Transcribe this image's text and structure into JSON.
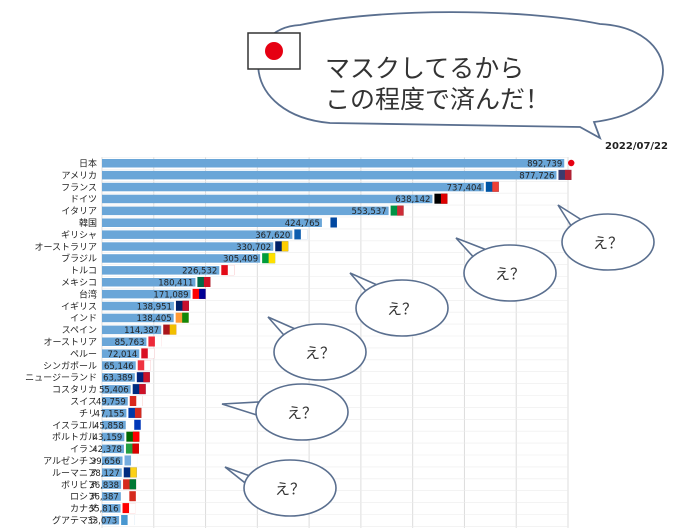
{
  "chart_data": {
    "type": "bar",
    "orientation": "horizontal",
    "date": "2022/07/22",
    "categories": [
      "日本",
      "アメリカ",
      "フランス",
      "ドイツ",
      "イタリア",
      "韓国",
      "ギリシャ",
      "オーストラリア",
      "ブラジル",
      "トルコ",
      "メキシコ",
      "台湾",
      "イギリス",
      "インド",
      "スペイン",
      "オーストリア",
      "ペルー",
      "シンガポール",
      "ニュージーランド",
      "コスタリカ",
      "スイス",
      "チリ",
      "イスラエル",
      "ポルトガル",
      "イラン",
      "アルゼンチン",
      "ルーマニア",
      "ボリビア",
      "ロシア",
      "カナダ",
      "グアテマラ"
    ],
    "values": [
      892739,
      877726,
      737404,
      638142,
      553537,
      424765,
      367620,
      330702,
      305409,
      226532,
      180411,
      171089,
      138951,
      138405,
      114387,
      85763,
      72014,
      65146,
      63389,
      55406,
      49759,
      47155,
      45858,
      43159,
      42378,
      39656,
      38127,
      36838,
      36387,
      35816,
      33073
    ],
    "value_labels": [
      "892,739",
      "877,726",
      "737,404",
      "638,142",
      "553,537",
      "424,765",
      "367,620",
      "330,702",
      "305,409",
      "226,532",
      "180,411",
      "171,089",
      "138,951",
      "138,405",
      "114,387",
      "85,763",
      "72,014",
      "65,146",
      "63,389",
      "55,406",
      "49,759",
      "47,155",
      "45,858",
      "43,159",
      "42,378",
      "39,656",
      "38,127",
      "36,838",
      "36,387",
      "35,816",
      "33,073"
    ],
    "xlim": [
      0,
      900000
    ],
    "grid": true,
    "bar_color": "#6aa6d8"
  },
  "speech": {
    "main": [
      "マスクしてるから",
      "この程度で済んだ！"
    ],
    "small": [
      "え？",
      "え？",
      "え？",
      "え？",
      "え？",
      "え？"
    ]
  },
  "colors": {
    "bubble_stroke": "#5a6f8f",
    "japan_red": "#e60012"
  },
  "icons": [
    "japan-flag-icon",
    "country-flag-icon"
  ]
}
